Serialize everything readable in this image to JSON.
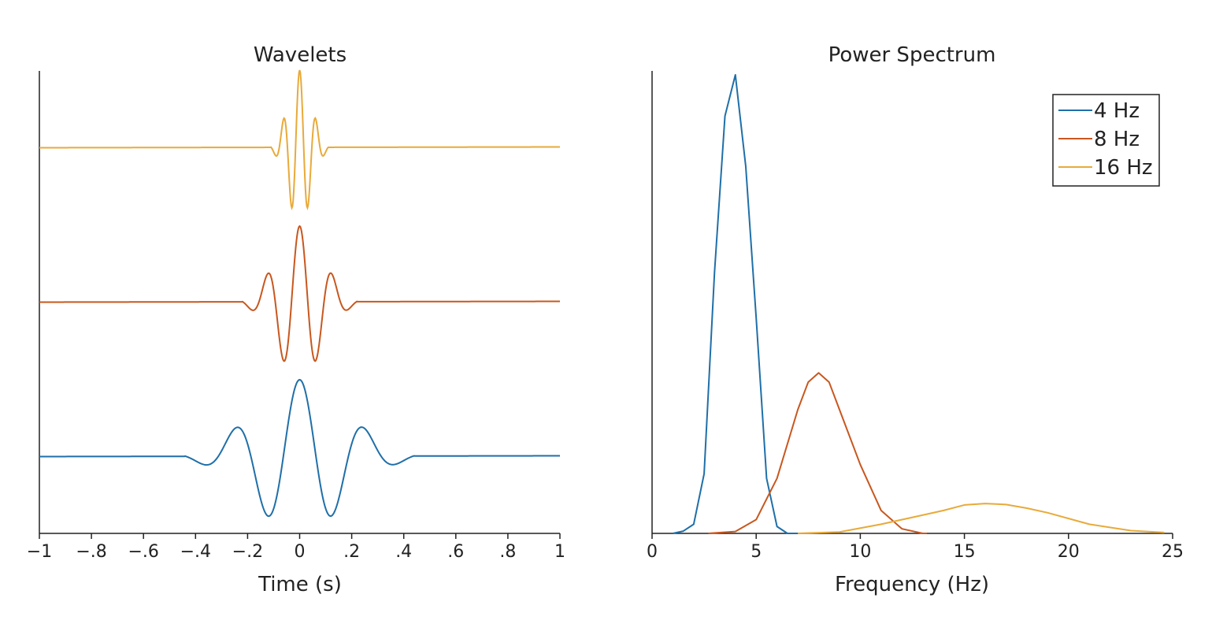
{
  "colors": {
    "series_4hz": "#1f6fa8",
    "series_8hz": "#c8571e",
    "series_16hz": "#e8aa3a",
    "axis": "#222222",
    "background": "#ffffff"
  },
  "chart_data": [
    {
      "type": "line",
      "title": "Wavelets",
      "xlabel": "Time (s)",
      "ylabel": "",
      "xlim": [
        -1,
        1
      ],
      "xticks": [
        -1,
        -0.8,
        -0.6,
        -0.4,
        -0.2,
        0,
        0.2,
        0.4,
        0.6,
        0.8,
        1
      ],
      "xtick_labels": [
        "−1",
        "−.8",
        "−.6",
        "−.4",
        "−.2",
        "0",
        ".2",
        ".4",
        ".6",
        ".8",
        "1"
      ],
      "grid": false,
      "legend": null,
      "series": [
        {
          "frequency_hz": 4,
          "color": "#1f6fa8",
          "support_s": [
            -0.44,
            0.44
          ],
          "peak": 1.0
        },
        {
          "frequency_hz": 8,
          "color": "#c8571e",
          "support_s": [
            -0.22,
            0.22
          ],
          "peak": 1.0
        },
        {
          "frequency_hz": 16,
          "color": "#e8aa3a",
          "support_s": [
            -0.11,
            0.11
          ],
          "peak": 1.0
        }
      ]
    },
    {
      "type": "line",
      "title": "Power Spectrum",
      "xlabel": "Frequency (Hz)",
      "ylabel": "",
      "xlim": [
        0,
        25
      ],
      "ylim": [
        0,
        1
      ],
      "xticks": [
        0,
        5,
        10,
        15,
        20,
        25
      ],
      "xtick_labels": [
        "0",
        "5",
        "10",
        "15",
        "20",
        "25"
      ],
      "grid": false,
      "legend": "top-right",
      "series": [
        {
          "name": "4 Hz",
          "color": "#1f6fa8",
          "x": [
            1.0,
            1.5,
            2.0,
            2.5,
            3.0,
            3.5,
            4.0,
            4.5,
            5.0,
            5.5,
            6.0,
            6.5,
            7.0
          ],
          "y": [
            0.0,
            0.005,
            0.02,
            0.13,
            0.57,
            0.91,
            1.0,
            0.8,
            0.47,
            0.12,
            0.015,
            0.0,
            0.0
          ]
        },
        {
          "name": "8 Hz",
          "color": "#c8571e",
          "x": [
            2.7,
            4.0,
            5.0,
            6.0,
            7.0,
            7.5,
            8.0,
            8.5,
            9.0,
            10.0,
            11.0,
            12.0,
            13.0,
            13.2
          ],
          "y": [
            0.0,
            0.004,
            0.03,
            0.12,
            0.27,
            0.33,
            0.35,
            0.33,
            0.27,
            0.15,
            0.05,
            0.01,
            0.0,
            0.0
          ]
        },
        {
          "name": "16 Hz",
          "color": "#e8aa3a",
          "x": [
            7.0,
            9.0,
            11.0,
            13.0,
            14.0,
            15.0,
            16.0,
            17.0,
            18.0,
            19.0,
            21.0,
            23.0,
            24.6
          ],
          "y": [
            0.0,
            0.003,
            0.02,
            0.04,
            0.05,
            0.062,
            0.065,
            0.063,
            0.055,
            0.045,
            0.02,
            0.006,
            0.002
          ]
        }
      ]
    }
  ]
}
